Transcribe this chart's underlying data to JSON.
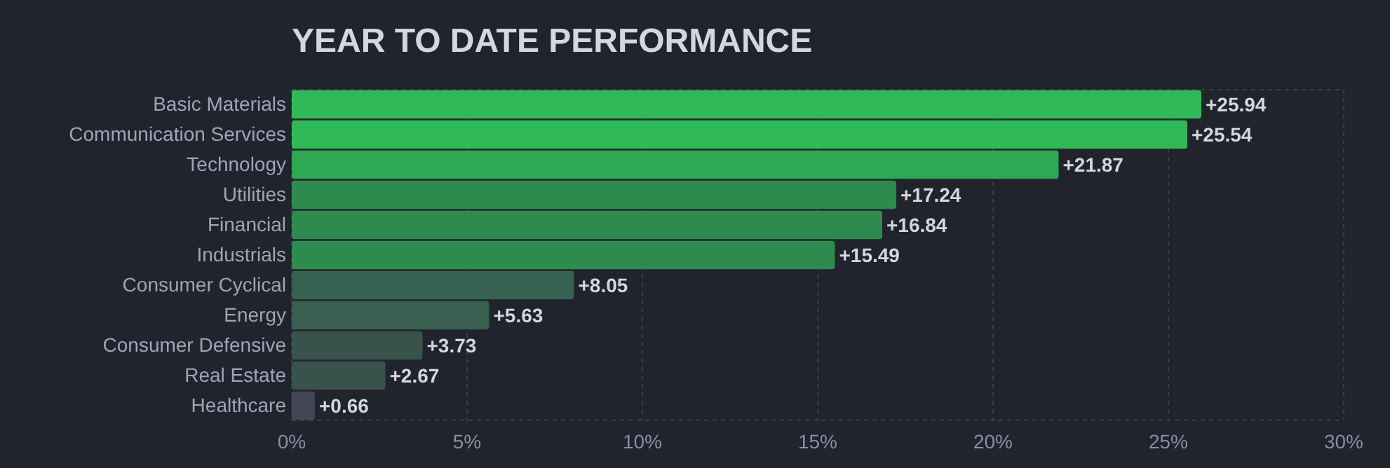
{
  "chart_data": {
    "type": "bar",
    "orientation": "horizontal",
    "title": "YEAR TO DATE PERFORMANCE",
    "categories": [
      "Basic Materials",
      "Communication Services",
      "Technology",
      "Utilities",
      "Financial",
      "Industrials",
      "Consumer Cyclical",
      "Energy",
      "Consumer Defensive",
      "Real Estate",
      "Healthcare"
    ],
    "values": [
      25.94,
      25.54,
      21.87,
      17.24,
      16.84,
      15.49,
      8.05,
      5.63,
      3.73,
      2.67,
      0.66
    ],
    "value_labels": [
      "+25.94",
      "+25.54",
      "+21.87",
      "+17.24",
      "+16.84",
      "+15.49",
      "+8.05",
      "+5.63",
      "+3.73",
      "+2.67",
      "+0.66"
    ],
    "colors": [
      "#30b957",
      "#30b957",
      "#2ea852",
      "#2e8b4e",
      "#2e8b4e",
      "#2e8b4e",
      "#376150",
      "#385f50",
      "#3a524c",
      "#3a524c",
      "#434555"
    ],
    "xlim": [
      0,
      30
    ],
    "xticks": [
      {
        "value": 0,
        "label": "0%"
      },
      {
        "value": 5,
        "label": "5%"
      },
      {
        "value": 10,
        "label": "10%"
      },
      {
        "value": 15,
        "label": "15%"
      },
      {
        "value": 20,
        "label": "20%"
      },
      {
        "value": 25,
        "label": "25%"
      },
      {
        "value": 30,
        "label": "30%"
      }
    ],
    "grid": "x"
  }
}
